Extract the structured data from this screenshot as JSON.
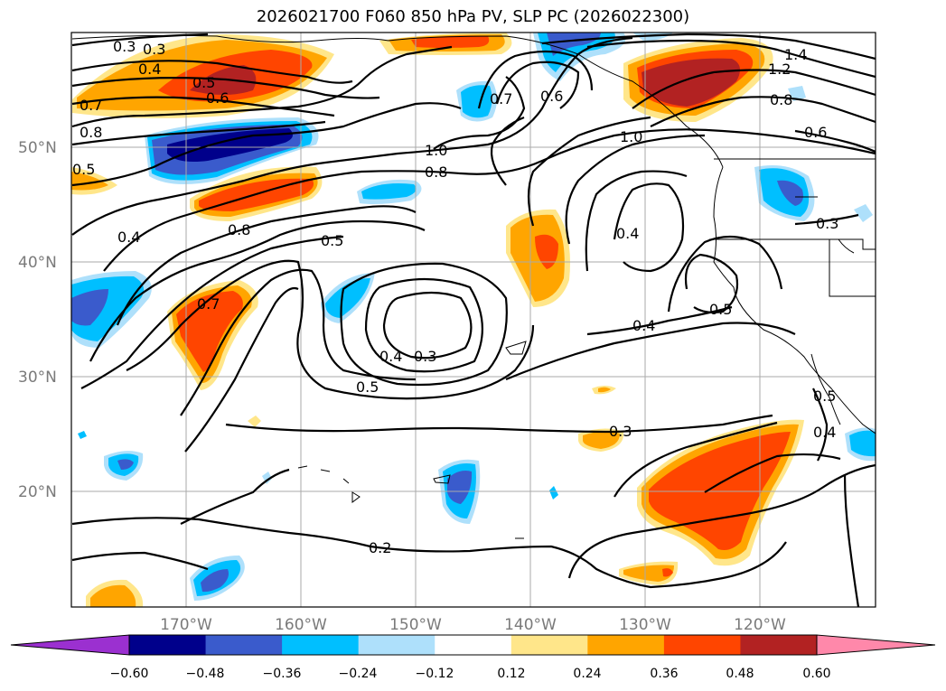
{
  "title": "2026021700 F060 850 hPa PV, SLP PC (2026022300)",
  "lat_labels": [
    "50°N",
    "40°N",
    "30°N",
    "20°N"
  ],
  "lon_labels": [
    "170°W",
    "160°W",
    "150°W",
    "140°W",
    "130°W",
    "120°W"
  ],
  "colorbar": {
    "ticks": [
      "−0.60",
      "−0.48",
      "−0.36",
      "−0.24",
      "−0.12",
      "0.12",
      "0.24",
      "0.36",
      "0.48",
      "0.60"
    ],
    "colors": [
      "#9b30d0",
      "#00008b",
      "#3a5bcc",
      "#00bfff",
      "#aee0fb",
      "#ffffff",
      "#ffe68a",
      "#ffa500",
      "#ff4500",
      "#b22222",
      "#ff88aa"
    ]
  },
  "contour_labels": [
    "0.3",
    "0.4",
    "0.5",
    "0.6",
    "0.7",
    "0.8",
    "0.8",
    "1.0",
    "1.0",
    "1.2",
    "1.4",
    "0.8",
    "0.6",
    "0.7",
    "0.6",
    "0.8",
    "0.4",
    "0.5",
    "0.7",
    "0.4",
    "0.3",
    "0.5",
    "0.4",
    "0.3",
    "0.2",
    "0.3",
    "0.4",
    "0.5",
    "0.4",
    "0.5",
    "0.5",
    "0.3"
  ],
  "map_data": {
    "extent": {
      "lon_min": -180,
      "lon_max": -110,
      "lat_min": 10,
      "lat_max": 60
    },
    "grid_lons": [
      -170,
      -160,
      -150,
      -140,
      -130,
      -120
    ],
    "grid_lats": [
      50,
      40,
      30,
      20
    ]
  }
}
